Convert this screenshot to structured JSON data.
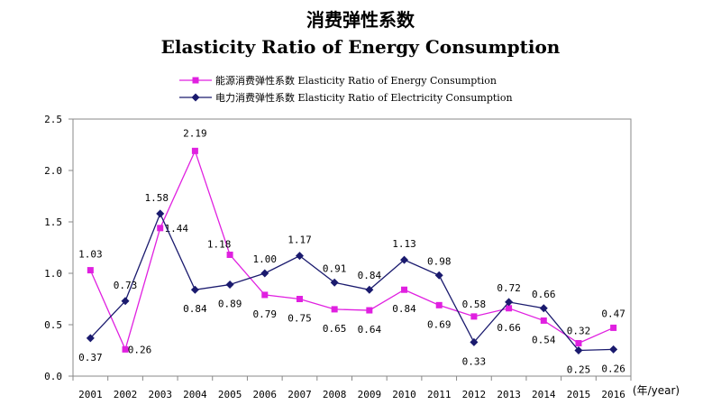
{
  "chart_data": {
    "type": "line",
    "title": "消费弹性系数",
    "subtitle": "Elasticity Ratio of Energy Consumption",
    "x": [
      "2001",
      "2002",
      "2003",
      "2004",
      "2005",
      "2006",
      "2007",
      "2008",
      "2009",
      "2010",
      "2011",
      "2012",
      "2013",
      "2014",
      "2015",
      "2016"
    ],
    "x_unit": "(年/year)",
    "ylim": [
      0,
      2.5
    ],
    "yticks": [
      "0.0",
      "0.5",
      "1.0",
      "1.5",
      "2.0",
      "2.5"
    ],
    "grid": false,
    "legend_position": "top-center",
    "series": [
      {
        "name": "能源消费弹性系数  Elasticity Ratio of Energy Consumption",
        "color": "#e020e0",
        "marker": "square",
        "values": [
          1.03,
          0.26,
          1.44,
          2.19,
          1.18,
          0.79,
          0.75,
          0.65,
          0.64,
          0.84,
          0.69,
          0.58,
          0.66,
          0.54,
          0.32,
          0.47
        ],
        "labels": [
          "1.03",
          "0.26",
          "1.44",
          "2.19",
          "1.18",
          "0.79",
          "0.75",
          "0.65",
          "0.64",
          "0.84",
          "0.69",
          "0.58",
          "0.66",
          "0.54",
          "0.32",
          "0.47"
        ]
      },
      {
        "name": "电力消费弹性系数  Elasticity Ratio of Electricity Consumption",
        "color": "#1a1a6e",
        "marker": "diamond",
        "values": [
          0.37,
          0.73,
          1.58,
          0.84,
          0.89,
          1.0,
          1.17,
          0.91,
          0.84,
          1.13,
          0.98,
          0.33,
          0.72,
          0.66,
          0.25,
          0.26
        ],
        "labels": [
          "0.37",
          "0.73",
          "1.58",
          "0.84",
          "0.89",
          "1.00",
          "1.17",
          "0.91",
          "0.84",
          "1.13",
          "0.98",
          "0.33",
          "0.72",
          "0.66",
          "0.25",
          "0.26"
        ]
      }
    ]
  }
}
